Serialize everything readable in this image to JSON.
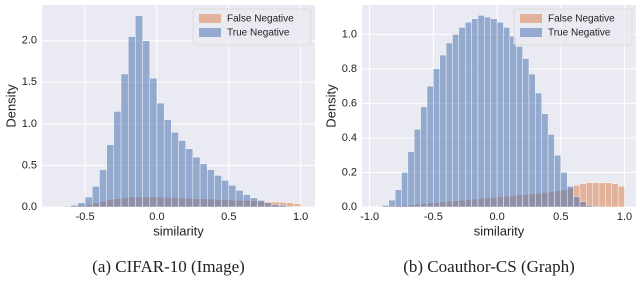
{
  "chart_data": [
    {
      "type": "histogram",
      "caption": "(a)  CIFAR-10 (Image)",
      "xlabel": "similarity",
      "ylabel": "Density",
      "bins": [
        -0.65,
        -0.6,
        -0.55,
        -0.5,
        -0.45,
        -0.4,
        -0.35,
        -0.3,
        -0.25,
        -0.2,
        -0.15,
        -0.1,
        -0.05,
        0,
        0.05,
        0.1,
        0.15,
        0.2,
        0.25,
        0.3,
        0.35,
        0.4,
        0.45,
        0.5,
        0.55,
        0.6,
        0.65,
        0.7,
        0.75,
        0.8,
        0.85,
        0.9,
        0.95,
        1.0
      ],
      "series": [
        {
          "name": "False Negative",
          "color": "#dd8452",
          "values": [
            0.005,
            0.01,
            0.02,
            0.03,
            0.05,
            0.07,
            0.09,
            0.1,
            0.11,
            0.12,
            0.12,
            0.12,
            0.12,
            0.12,
            0.115,
            0.11,
            0.11,
            0.105,
            0.1,
            0.1,
            0.095,
            0.09,
            0.09,
            0.085,
            0.08,
            0.08,
            0.075,
            0.07,
            0.065,
            0.06,
            0.055,
            0.05,
            0.04
          ]
        },
        {
          "name": "True Negative",
          "color": "#4c72b0",
          "values": [
            0.01,
            0.02,
            0.05,
            0.12,
            0.25,
            0.45,
            0.75,
            1.15,
            1.6,
            2.05,
            2.3,
            2.0,
            1.55,
            1.25,
            1.05,
            0.9,
            0.8,
            0.7,
            0.6,
            0.52,
            0.45,
            0.38,
            0.32,
            0.26,
            0.2,
            0.15,
            0.11,
            0.08,
            0.05,
            0.03,
            0.02,
            0.01,
            0.005
          ]
        }
      ],
      "xlim": [
        -0.8,
        1.1
      ],
      "ylim": [
        0,
        2.43
      ],
      "xticks": [
        -0.5,
        {
          "value": 0,
          "label": "0.0"
        },
        0.5,
        {
          "value": 1,
          "label": "1.0"
        }
      ],
      "yticks": [
        {
          "value": 0,
          "label": "0.0"
        },
        0.5,
        {
          "value": 1,
          "label": "1.0"
        },
        1.5,
        {
          "value": 2,
          "label": "2.0"
        }
      ],
      "grid": true,
      "legend": "upper right"
    },
    {
      "type": "histogram",
      "caption": "(b)  Coauthor-CS (Graph)",
      "xlabel": "similarity",
      "ylabel": "Density",
      "bins": [
        -1.0,
        -0.95,
        -0.9,
        -0.85,
        -0.8,
        -0.75,
        -0.7,
        -0.65,
        -0.6,
        -0.55,
        -0.5,
        -0.45,
        -0.4,
        -0.35,
        -0.3,
        -0.25,
        -0.2,
        -0.15,
        -0.1,
        -0.05,
        0,
        0.05,
        0.1,
        0.15,
        0.2,
        0.25,
        0.3,
        0.35,
        0.4,
        0.45,
        0.5,
        0.55,
        0.6,
        0.65,
        0.7,
        0.75,
        0.8,
        0.85,
        0.9,
        0.95,
        1.0
      ],
      "series": [
        {
          "name": "False Negative",
          "color": "#dd8452",
          "values": [
            0,
            0,
            0.002,
            0.005,
            0.008,
            0.01,
            0.013,
            0.016,
            0.02,
            0.023,
            0.026,
            0.03,
            0.033,
            0.036,
            0.04,
            0.043,
            0.046,
            0.05,
            0.053,
            0.056,
            0.06,
            0.063,
            0.066,
            0.07,
            0.073,
            0.076,
            0.08,
            0.084,
            0.088,
            0.093,
            0.1,
            0.11,
            0.125,
            0.135,
            0.14,
            0.14,
            0.14,
            0.14,
            0.135,
            0.12
          ]
        },
        {
          "name": "True Negative",
          "color": "#4c72b0",
          "values": [
            0,
            0.002,
            0.01,
            0.04,
            0.1,
            0.2,
            0.32,
            0.45,
            0.58,
            0.7,
            0.8,
            0.88,
            0.95,
            1.0,
            1.04,
            1.07,
            1.09,
            1.11,
            1.1,
            1.09,
            1.07,
            1.04,
            0.99,
            0.93,
            0.86,
            0.77,
            0.66,
            0.54,
            0.42,
            0.3,
            0.2,
            0.12,
            0.06,
            0.03,
            0.01,
            0.005,
            0,
            0,
            0,
            0
          ]
        }
      ],
      "xlim": [
        -1.06,
        1.09
      ],
      "ylim": [
        0,
        1.17
      ],
      "xticks": [
        {
          "value": -1,
          "label": "-1.0"
        },
        -0.5,
        {
          "value": 0,
          "label": "0.0"
        },
        0.5,
        {
          "value": 1,
          "label": "1.0"
        }
      ],
      "yticks": [
        {
          "value": 0,
          "label": "0.0"
        },
        0.2,
        0.4,
        0.6,
        0.8,
        {
          "value": 1,
          "label": "1.0"
        }
      ],
      "grid": true,
      "legend": "upper right"
    }
  ]
}
